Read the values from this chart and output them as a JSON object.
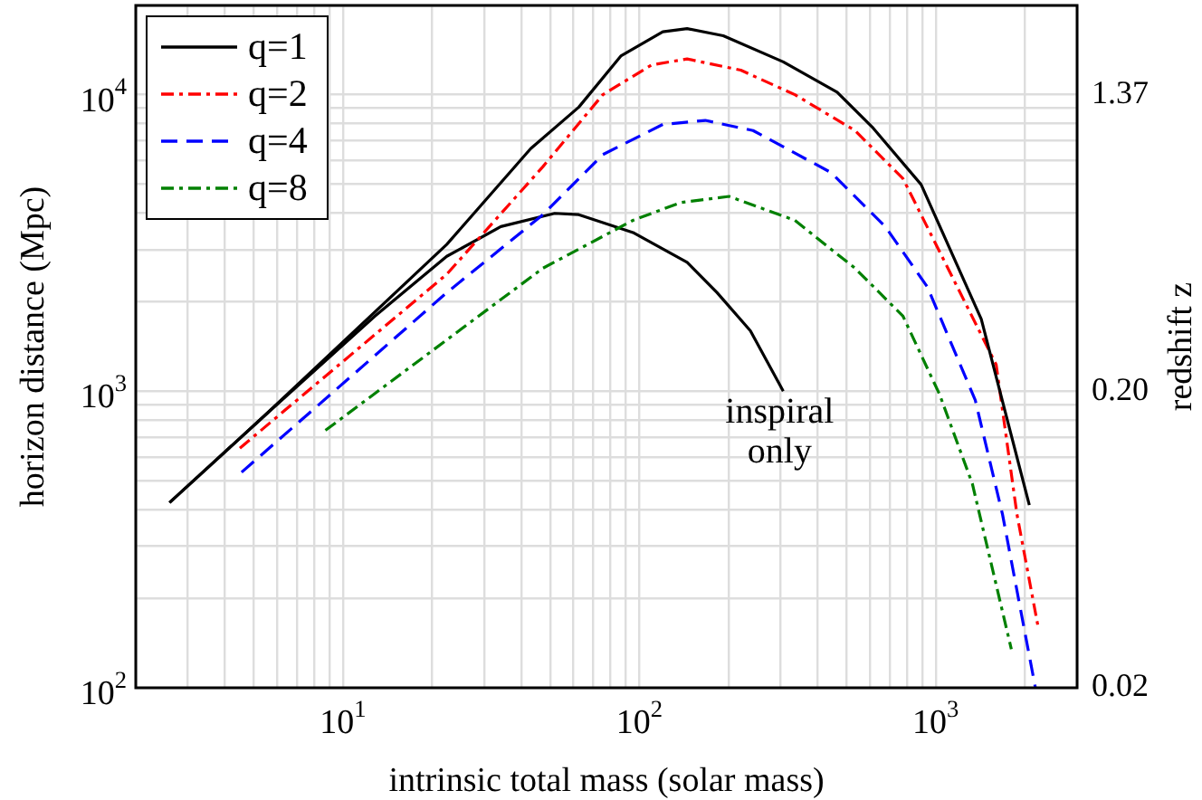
{
  "chart_data": {
    "type": "line",
    "xlabel": "intrinsic total mass (solar mass)",
    "ylabel": "horizon distance (Mpc)",
    "y2label": "redshift z",
    "log": "xy",
    "grid": true,
    "legend": "top left",
    "marker": "none",
    "xlim": [
      2,
      3000
    ],
    "xticks": [
      {
        "value": 2,
        "label": null
      },
      {
        "value": 3,
        "label": null
      },
      {
        "value": 4,
        "label": null
      },
      {
        "value": 5,
        "label": null
      },
      {
        "value": 6,
        "label": null
      },
      {
        "value": 7,
        "label": null
      },
      {
        "value": 8,
        "label": null
      },
      {
        "value": 9,
        "label": null
      },
      {
        "value": 10,
        "label": "10$^{1}$"
      },
      {
        "value": 20,
        "label": null
      },
      {
        "value": 30,
        "label": null
      },
      {
        "value": 40,
        "label": null
      },
      {
        "value": 50,
        "label": null
      },
      {
        "value": 60,
        "label": null
      },
      {
        "value": 70,
        "label": null
      },
      {
        "value": 80,
        "label": null
      },
      {
        "value": 90,
        "label": null
      },
      {
        "value": 100,
        "label": "10$^{2}$"
      },
      {
        "value": 200,
        "label": null
      },
      {
        "value": 300,
        "label": null
      },
      {
        "value": 400,
        "label": null
      },
      {
        "value": 500,
        "label": null
      },
      {
        "value": 600,
        "label": null
      },
      {
        "value": 700,
        "label": null
      },
      {
        "value": 800,
        "label": null
      },
      {
        "value": 900,
        "label": null
      },
      {
        "value": 1000,
        "label": "10$^{3}$"
      },
      {
        "value": 2000,
        "label": null
      },
      {
        "value": 3000,
        "label": null
      }
    ],
    "ylim": [
      100,
      20000
    ],
    "yticks": [
      {
        "value": 100,
        "label": "10$^{2}$"
      },
      {
        "value": 200,
        "label": null
      },
      {
        "value": 300,
        "label": null
      },
      {
        "value": 400,
        "label": null
      },
      {
        "value": 500,
        "label": null
      },
      {
        "value": 600,
        "label": null
      },
      {
        "value": 700,
        "label": null
      },
      {
        "value": 800,
        "label": null
      },
      {
        "value": 900,
        "label": null
      },
      {
        "value": 1000,
        "label": "10$^{3}$"
      },
      {
        "value": 2000,
        "label": null
      },
      {
        "value": 3000,
        "label": null
      },
      {
        "value": 4000,
        "label": null
      },
      {
        "value": 5000,
        "label": null
      },
      {
        "value": 6000,
        "label": null
      },
      {
        "value": 7000,
        "label": null
      },
      {
        "value": 8000,
        "label": null
      },
      {
        "value": 9000,
        "label": null
      },
      {
        "value": 10000,
        "label": "10$^{4}$"
      },
      {
        "value": 20000,
        "label": null
      }
    ],
    "annotations": [
      {
        "text": "inspiral only",
        "x": 306,
        "y": 1000
      },
      "0.02",
      "0.20",
      "1.37"
    ],
    "series": [
      {
        "name": "q=1",
        "color": "#000000",
        "line_style": "solid",
        "x": [
          2.6,
          5.4,
          22.4,
          43,
          62.5,
          86.6,
          120,
          145,
          192,
          306,
          465,
          615,
          893,
          1425,
          2070
        ],
        "values": [
          421,
          822,
          3127,
          6580,
          9080,
          13500,
          16300,
          16700,
          15800,
          12900,
          10200,
          7720,
          4980,
          1750,
          413
        ]
      },
      {
        "name": "q=2",
        "color": "#ff0000",
        "line_style": "dashdot",
        "x": [
          4.49,
          22.4,
          47.3,
          75.3,
          110,
          145,
          220,
          335,
          534,
          776,
          980,
          1600,
          1880,
          2220
        ],
        "values": [
          643,
          2480,
          5720,
          10000,
          12600,
          13200,
          12100,
          10000,
          7570,
          5210,
          3270,
          1230,
          385,
          159
        ]
      },
      {
        "name": "q=4",
        "color": "#0000ff",
        "line_style": "dashed",
        "x": [
          4.55,
          22.4,
          47.3,
          75.3,
          120,
          167,
          242,
          444,
          676,
          937,
          1360,
          1680,
          2170
        ],
        "values": [
          533,
          2150,
          3940,
          6280,
          7940,
          8190,
          7570,
          5460,
          3590,
          2250,
          933,
          385,
          100
        ]
      },
      {
        "name": "q=8",
        "color": "#008000",
        "line_style": "dashdot",
        "x": [
          8.73,
          22.4,
          47.3,
          95.2,
          138,
          201,
          335,
          534,
          776,
          1030,
          1330,
          1800
        ],
        "values": [
          738,
          1490,
          2600,
          3770,
          4330,
          4540,
          3770,
          2600,
          1790,
          977,
          487,
          135
        ]
      },
      {
        "color": "#000000",
        "line_style": "solid",
        "x": [
          2.6,
          5.4,
          12.8,
          22.4,
          34.1,
          51.8,
          62.5,
          95.2,
          145,
          183,
          237,
          306
        ],
        "values": [
          421,
          822,
          1790,
          2850,
          3590,
          3980,
          3940,
          3430,
          2720,
          2150,
          1600,
          1000
        ]
      }
    ]
  }
}
